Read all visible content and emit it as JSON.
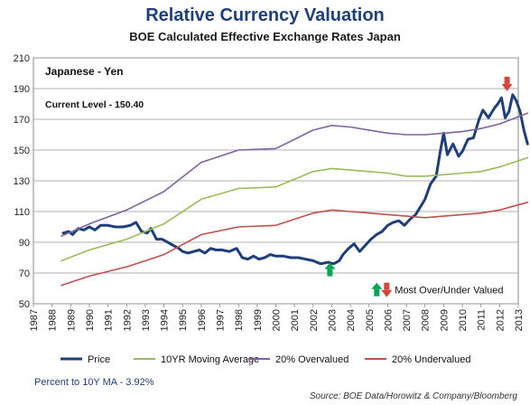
{
  "title": "Relative Currency Valuation",
  "subtitle": "BOE Calculated Effective Exchange Rates Japan",
  "footer_note": "Percent  to 10Y MA  -  3.92%",
  "source": "Source: BOE Data/Horowitz & Company/Bloomberg",
  "chart_data": {
    "type": "line",
    "title": "Relative Currency Valuation",
    "subtitle": "BOE Calculated Effective Exchange Rates Japan",
    "xlim": [
      1987,
      2013
    ],
    "ylim": [
      50,
      210
    ],
    "x_ticks": [
      "1987",
      "1988",
      "1989",
      "1990",
      "1991",
      "1992",
      "1993",
      "1994",
      "1995",
      "1996",
      "1997",
      "1998",
      "1999",
      "2000",
      "2001",
      "2002",
      "2003",
      "2004",
      "2005",
      "2006",
      "2007",
      "2008",
      "2009",
      "2010",
      "2011",
      "2012",
      "2013"
    ],
    "y_ticks": [
      50,
      70,
      90,
      110,
      130,
      150,
      170,
      190,
      210
    ],
    "legend_position": "bottom",
    "grid": "horizontal",
    "annotations": {
      "currency": "Japanese - Yen",
      "current_level": "Current  Level  -   150.40",
      "marker_legend": "Most Over/Under Valued"
    },
    "series": [
      {
        "name": "Price",
        "color": "#1f3f7a",
        "points": [
          [
            1988.6,
            96
          ],
          [
            1988.9,
            97
          ],
          [
            1989.1,
            95
          ],
          [
            1989.4,
            99
          ],
          [
            1989.7,
            98
          ],
          [
            1990.0,
            100
          ],
          [
            1990.3,
            98
          ],
          [
            1990.6,
            101
          ],
          [
            1991.0,
            101
          ],
          [
            1991.4,
            100
          ],
          [
            1991.8,
            100
          ],
          [
            1992.2,
            101
          ],
          [
            1992.5,
            103
          ],
          [
            1992.8,
            97
          ],
          [
            1993.1,
            96
          ],
          [
            1993.3,
            99
          ],
          [
            1993.6,
            92
          ],
          [
            1993.9,
            92
          ],
          [
            1994.2,
            90
          ],
          [
            1994.5,
            88
          ],
          [
            1994.8,
            86
          ],
          [
            1995.0,
            84
          ],
          [
            1995.3,
            83
          ],
          [
            1995.6,
            84
          ],
          [
            1995.9,
            85
          ],
          [
            1996.2,
            83
          ],
          [
            1996.5,
            86
          ],
          [
            1996.8,
            85
          ],
          [
            1997.1,
            85
          ],
          [
            1997.5,
            84
          ],
          [
            1997.9,
            86
          ],
          [
            1998.2,
            80
          ],
          [
            1998.5,
            79
          ],
          [
            1998.8,
            81
          ],
          [
            1999.1,
            79
          ],
          [
            1999.4,
            80
          ],
          [
            1999.7,
            82
          ],
          [
            2000.0,
            81
          ],
          [
            2000.4,
            81
          ],
          [
            2000.8,
            80
          ],
          [
            2001.2,
            80
          ],
          [
            2001.6,
            79
          ],
          [
            2002.0,
            78
          ],
          [
            2002.4,
            76
          ],
          [
            2002.8,
            77
          ],
          [
            2003.1,
            76
          ],
          [
            2003.4,
            78
          ],
          [
            2003.6,
            82
          ],
          [
            2003.9,
            86
          ],
          [
            2004.2,
            89
          ],
          [
            2004.5,
            84
          ],
          [
            2004.8,
            88
          ],
          [
            2005.1,
            92
          ],
          [
            2005.4,
            95
          ],
          [
            2005.7,
            97
          ],
          [
            2006.0,
            101
          ],
          [
            2006.3,
            103
          ],
          [
            2006.6,
            104
          ],
          [
            2006.9,
            101
          ],
          [
            2007.2,
            105
          ],
          [
            2007.5,
            108
          ],
          [
            2007.8,
            114
          ],
          [
            2008.0,
            118
          ],
          [
            2008.3,
            128
          ],
          [
            2008.6,
            133
          ],
          [
            2008.8,
            148
          ],
          [
            2009.0,
            161
          ],
          [
            2009.2,
            147
          ],
          [
            2009.5,
            154
          ],
          [
            2009.8,
            146
          ],
          [
            2010.0,
            149
          ],
          [
            2010.3,
            157
          ],
          [
            2010.6,
            158
          ],
          [
            2010.9,
            170
          ],
          [
            2011.1,
            176
          ],
          [
            2011.4,
            171
          ],
          [
            2011.7,
            177
          ],
          [
            2011.9,
            180
          ],
          [
            2012.1,
            184
          ],
          [
            2012.3,
            171
          ],
          [
            2012.5,
            175
          ],
          [
            2012.7,
            186
          ],
          [
            2012.9,
            182
          ],
          [
            2013.1,
            175
          ],
          [
            2013.3,
            163
          ],
          [
            2013.5,
            154
          ]
        ]
      },
      {
        "name": "10YR Moving Average",
        "color": "#9bbb59",
        "points": [
          [
            1988.5,
            78
          ],
          [
            1990,
            85
          ],
          [
            1992,
            92
          ],
          [
            1994,
            102
          ],
          [
            1996,
            118
          ],
          [
            1998,
            125
          ],
          [
            2000,
            126
          ],
          [
            2001,
            131
          ],
          [
            2002,
            136
          ],
          [
            2003,
            138
          ],
          [
            2004,
            137
          ],
          [
            2005,
            136
          ],
          [
            2006,
            135
          ],
          [
            2007,
            133
          ],
          [
            2008,
            133
          ],
          [
            2009,
            134
          ],
          [
            2010,
            135
          ],
          [
            2011,
            136
          ],
          [
            2012,
            139
          ],
          [
            2013.5,
            145
          ]
        ]
      },
      {
        "name": "20% Overvalued",
        "color": "#8064a2",
        "points": [
          [
            1988.5,
            94
          ],
          [
            1990,
            102
          ],
          [
            1992,
            111
          ],
          [
            1994,
            123
          ],
          [
            1996,
            142
          ],
          [
            1998,
            150
          ],
          [
            2000,
            151
          ],
          [
            2001,
            157
          ],
          [
            2002,
            163
          ],
          [
            2003,
            166
          ],
          [
            2004,
            165
          ],
          [
            2005,
            163
          ],
          [
            2006,
            161
          ],
          [
            2007,
            160
          ],
          [
            2008,
            160
          ],
          [
            2009,
            161
          ],
          [
            2010,
            162
          ],
          [
            2011,
            164
          ],
          [
            2012,
            167
          ],
          [
            2013.5,
            174
          ]
        ]
      },
      {
        "name": "20% Undervalued",
        "color": "#c0504d",
        "points": [
          [
            1988.5,
            62
          ],
          [
            1990,
            68
          ],
          [
            1992,
            74
          ],
          [
            1994,
            82
          ],
          [
            1996,
            95
          ],
          [
            1998,
            100
          ],
          [
            2000,
            101
          ],
          [
            2001,
            105
          ],
          [
            2002,
            109
          ],
          [
            2003,
            111
          ],
          [
            2004,
            110
          ],
          [
            2005,
            109
          ],
          [
            2006,
            108
          ],
          [
            2007,
            107
          ],
          [
            2008,
            106
          ],
          [
            2009,
            107
          ],
          [
            2010,
            108
          ],
          [
            2011,
            109
          ],
          [
            2012,
            111
          ],
          [
            2013.5,
            116
          ]
        ]
      }
    ],
    "markers": [
      {
        "direction": "up",
        "color": "#00a651",
        "x": 2002.9,
        "y": 72
      },
      {
        "direction": "down",
        "color": "#d9453a",
        "x": 2012.4,
        "y": 193
      }
    ]
  }
}
